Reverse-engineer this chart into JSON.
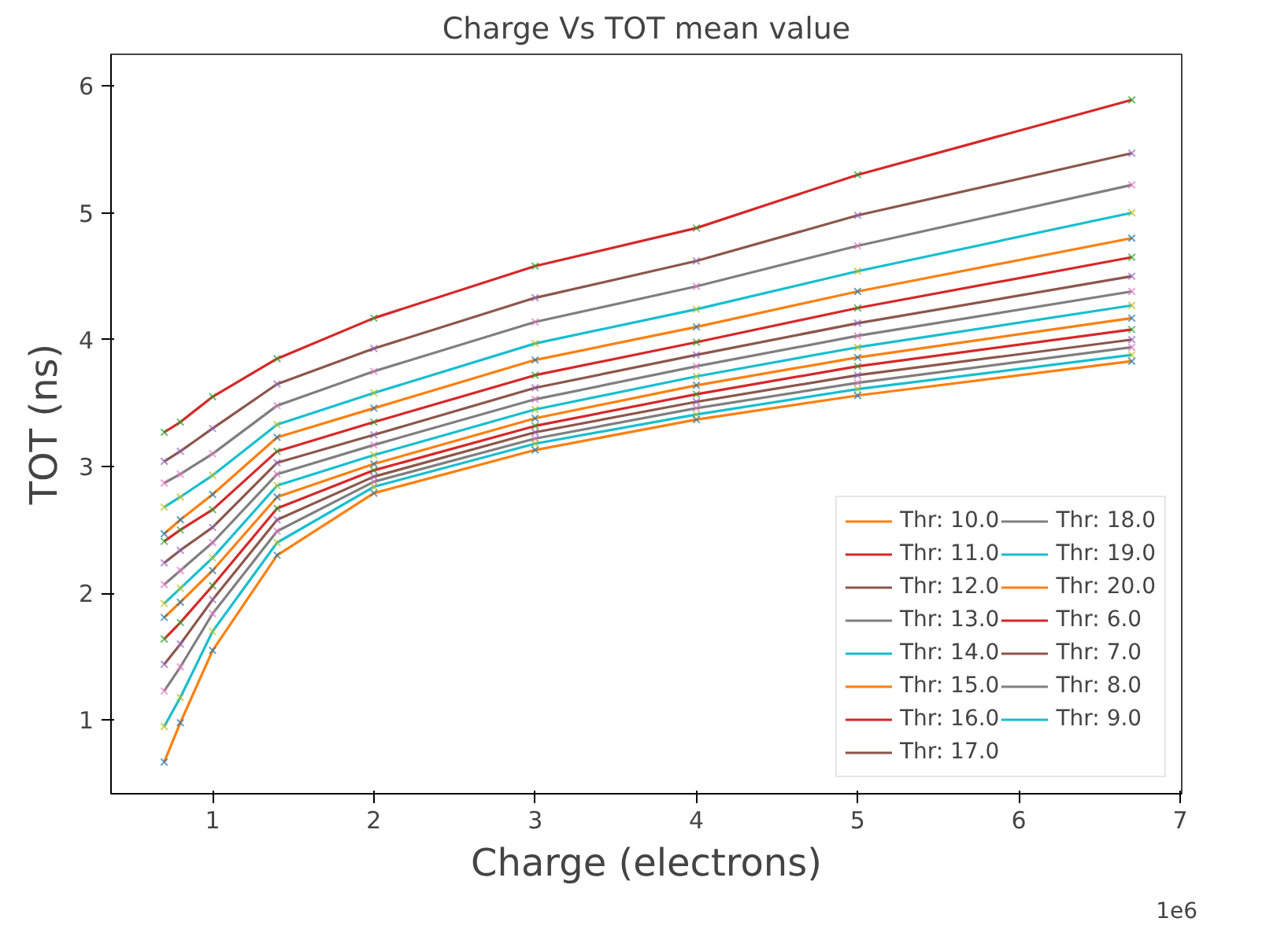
{
  "chart_data": {
    "type": "line",
    "title": "Charge Vs TOT mean value",
    "xlabel": "Charge (electrons)",
    "ylabel": "TOT (ns)",
    "x": [
      0.7,
      0.8,
      1.0,
      1.4,
      2.0,
      3.0,
      4.0,
      5.0,
      6.7
    ],
    "xlim": [
      0.37,
      7.01
    ],
    "xticks": [
      1,
      2,
      3,
      4,
      5,
      6,
      7
    ],
    "ylim": [
      0.42,
      6.25
    ],
    "yticks": [
      1,
      2,
      3,
      4,
      5,
      6
    ],
    "annotations": [
      "1e6"
    ],
    "grid": false,
    "legend": "bottom right",
    "line_style": "solid",
    "series": [
      {
        "name": "Thr: 10.0",
        "color": "#ff7f0e",
        "values": [
          2.47,
          2.58,
          2.78,
          3.23,
          3.46,
          3.84,
          4.1,
          4.38,
          4.8
        ]
      },
      {
        "name": "Thr: 11.0",
        "color": "#d62728",
        "values": [
          2.41,
          2.5,
          2.66,
          3.12,
          3.35,
          3.72,
          3.98,
          4.25,
          4.65
        ]
      },
      {
        "name": "Thr: 12.0",
        "color": "#8c564b",
        "values": [
          2.24,
          2.34,
          2.52,
          3.03,
          3.25,
          3.62,
          3.88,
          4.13,
          4.5
        ]
      },
      {
        "name": "Thr: 13.0",
        "color": "#7f7f7f",
        "values": [
          2.07,
          2.18,
          2.4,
          2.94,
          3.17,
          3.53,
          3.79,
          4.03,
          4.38
        ]
      },
      {
        "name": "Thr: 14.0",
        "color": "#17becf",
        "values": [
          1.92,
          2.04,
          2.28,
          2.85,
          3.09,
          3.45,
          3.71,
          3.94,
          4.27
        ]
      },
      {
        "name": "Thr: 15.0",
        "color": "#ff7f0e",
        "values": [
          1.81,
          1.93,
          2.18,
          2.76,
          3.02,
          3.38,
          3.64,
          3.86,
          4.17
        ]
      },
      {
        "name": "Thr: 16.0",
        "color": "#d62728",
        "values": [
          1.64,
          1.77,
          2.06,
          2.67,
          2.97,
          3.32,
          3.57,
          3.79,
          4.08
        ]
      },
      {
        "name": "Thr: 17.0",
        "color": "#8c564b",
        "values": [
          1.44,
          1.6,
          1.95,
          2.58,
          2.92,
          3.27,
          3.51,
          3.72,
          4.0
        ]
      },
      {
        "name": "Thr: 18.0",
        "color": "#7f7f7f",
        "values": [
          1.23,
          1.42,
          1.84,
          2.49,
          2.88,
          3.22,
          3.46,
          3.66,
          3.94
        ]
      },
      {
        "name": "Thr: 19.0",
        "color": "#17becf",
        "values": [
          0.95,
          1.18,
          1.7,
          2.4,
          2.84,
          3.18,
          3.41,
          3.61,
          3.88
        ]
      },
      {
        "name": "Thr: 20.0",
        "color": "#ff7f0e",
        "values": [
          0.67,
          0.98,
          1.55,
          2.3,
          2.79,
          3.13,
          3.37,
          3.56,
          3.83
        ]
      },
      {
        "name": "Thr: 6.0",
        "color": "#d62728",
        "values": [
          3.27,
          3.35,
          3.55,
          3.85,
          4.17,
          4.58,
          4.88,
          5.3,
          5.89
        ]
      },
      {
        "name": "Thr: 7.0",
        "color": "#8c564b",
        "values": [
          3.04,
          3.12,
          3.3,
          3.65,
          3.93,
          4.33,
          4.62,
          4.98,
          5.47
        ]
      },
      {
        "name": "Thr: 8.0",
        "color": "#7f7f7f",
        "values": [
          2.87,
          2.94,
          3.1,
          3.48,
          3.75,
          4.14,
          4.42,
          4.74,
          5.22
        ]
      },
      {
        "name": "Thr: 9.0",
        "color": "#17becf",
        "values": [
          2.68,
          2.76,
          2.93,
          3.33,
          3.58,
          3.97,
          4.24,
          4.54,
          5.0
        ]
      },
      {
        "type": "scatter",
        "marker": "cross",
        "color": "#1f77b4",
        "values": [
          2.47,
          2.58,
          2.78,
          3.23,
          3.46,
          3.84,
          4.1,
          4.38,
          4.8
        ]
      },
      {
        "type": "scatter",
        "marker": "cross",
        "color": "#2ca02c",
        "values": [
          2.41,
          2.5,
          2.66,
          3.12,
          3.35,
          3.72,
          3.98,
          4.25,
          4.65
        ]
      },
      {
        "type": "scatter",
        "marker": "cross",
        "color": "#9467bd",
        "values": [
          2.24,
          2.34,
          2.52,
          3.03,
          3.25,
          3.62,
          3.88,
          4.13,
          4.5
        ]
      },
      {
        "type": "scatter",
        "marker": "cross",
        "color": "#e377c2",
        "values": [
          2.07,
          2.18,
          2.4,
          2.94,
          3.17,
          3.53,
          3.79,
          4.03,
          4.38
        ]
      },
      {
        "type": "scatter",
        "marker": "cross",
        "color": "#bcbd22",
        "values": [
          1.92,
          2.04,
          2.28,
          2.85,
          3.09,
          3.45,
          3.71,
          3.94,
          4.27
        ]
      },
      {
        "type": "scatter",
        "marker": "cross",
        "color": "#1f77b4",
        "values": [
          1.81,
          1.93,
          2.18,
          2.76,
          3.02,
          3.38,
          3.64,
          3.86,
          4.17
        ]
      },
      {
        "type": "scatter",
        "marker": "cross",
        "color": "#2ca02c",
        "values": [
          1.64,
          1.77,
          2.06,
          2.67,
          2.97,
          3.32,
          3.57,
          3.79,
          4.08
        ]
      },
      {
        "type": "scatter",
        "marker": "cross",
        "color": "#9467bd",
        "values": [
          1.44,
          1.6,
          1.95,
          2.58,
          2.92,
          3.27,
          3.51,
          3.72,
          4.0
        ]
      },
      {
        "type": "scatter",
        "marker": "cross",
        "color": "#e377c2",
        "values": [
          1.23,
          1.42,
          1.84,
          2.49,
          2.88,
          3.22,
          3.46,
          3.66,
          3.94
        ]
      },
      {
        "type": "scatter",
        "marker": "cross",
        "color": "#bcbd22",
        "values": [
          0.95,
          1.18,
          1.7,
          2.4,
          2.84,
          3.18,
          3.41,
          3.61,
          3.88
        ]
      },
      {
        "type": "scatter",
        "marker": "cross",
        "color": "#1f77b4",
        "values": [
          0.67,
          0.98,
          1.55,
          2.3,
          2.79,
          3.13,
          3.37,
          3.56,
          3.83
        ]
      },
      {
        "type": "scatter",
        "marker": "cross",
        "color": "#2ca02c",
        "values": [
          3.27,
          3.35,
          3.55,
          3.85,
          4.17,
          4.58,
          4.88,
          5.3,
          5.89
        ]
      },
      {
        "type": "scatter",
        "marker": "cross",
        "color": "#9467bd",
        "values": [
          3.04,
          3.12,
          3.3,
          3.65,
          3.93,
          4.33,
          4.62,
          4.98,
          5.47
        ]
      },
      {
        "type": "scatter",
        "marker": "cross",
        "color": "#e377c2",
        "values": [
          2.87,
          2.94,
          3.1,
          3.48,
          3.75,
          4.14,
          4.42,
          4.74,
          5.22
        ]
      },
      {
        "type": "scatter",
        "marker": "cross",
        "color": "#bcbd22",
        "values": [
          2.68,
          2.76,
          2.93,
          3.33,
          3.58,
          3.97,
          4.24,
          4.54,
          5.0
        ]
      }
    ]
  }
}
